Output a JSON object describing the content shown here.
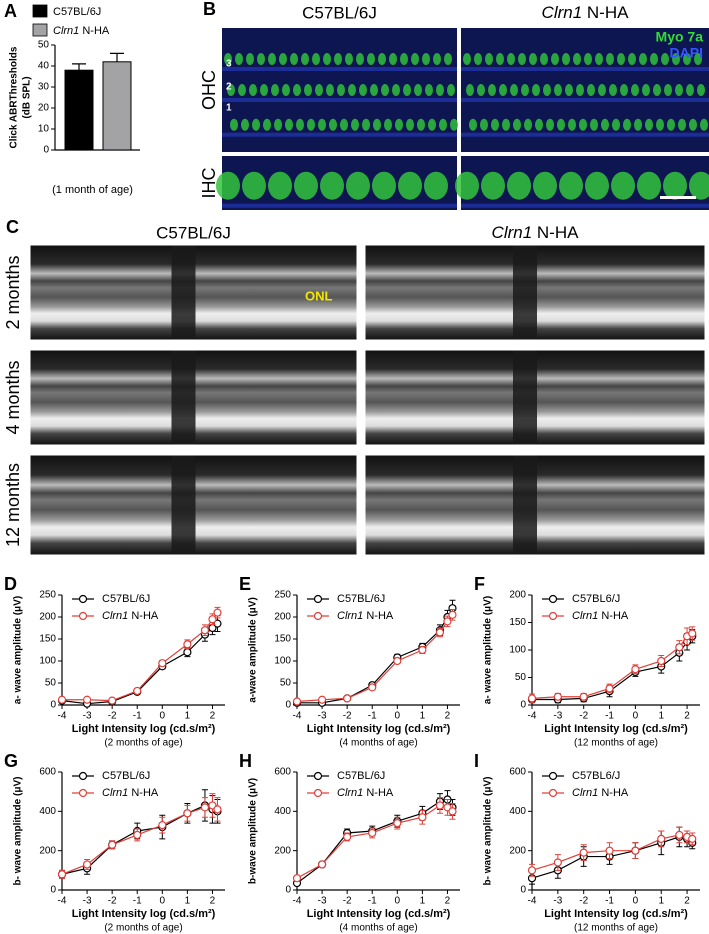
{
  "chart_data": [
    {
      "panel": "A",
      "type": "bar",
      "ylabel": [
        "Click ABRThresholds",
        "(dB SPL)"
      ],
      "xlabel": "(1 month of age)",
      "categories": [
        null
      ],
      "ylim": [
        0,
        50
      ],
      "yticks": [
        0,
        10,
        20,
        30,
        40,
        50
      ],
      "series": [
        {
          "name": "C57BL/6J",
          "color": "#000000",
          "values": [
            38
          ],
          "errors": [
            3
          ]
        },
        {
          "name": "Clrn1 N-HA",
          "color": "#a3a3a6",
          "values": [
            42
          ],
          "errors": [
            4
          ]
        }
      ]
    },
    {
      "panel": "D",
      "type": "line",
      "ylabel": "a- wave amplitude (μV)",
      "xlabel": "Light Intensity log (cd.s/m²)",
      "subtitle": "(2 months of age)",
      "x": [
        -4,
        -3,
        -2,
        -1,
        0,
        1,
        1.7,
        2,
        2.2
      ],
      "xlim": [
        -4,
        2.5
      ],
      "xticks": [
        -4,
        -3,
        -2,
        -1,
        0,
        1,
        2
      ],
      "ylim": [
        0,
        250
      ],
      "yticks": [
        0,
        50,
        100,
        150,
        200,
        250
      ],
      "series": [
        {
          "name": "C57BL/6J",
          "color": "#000000",
          "values": [
            10,
            3,
            8,
            30,
            88,
            120,
            160,
            175,
            185
          ],
          "errors": [
            3,
            3,
            3,
            5,
            6,
            10,
            15,
            15,
            18
          ]
        },
        {
          "name": "Clrn1 N-HA",
          "color": "#e0403a",
          "values": [
            12,
            12,
            10,
            32,
            95,
            138,
            170,
            195,
            210
          ],
          "errors": [
            3,
            3,
            3,
            5,
            6,
            10,
            12,
            12,
            12
          ]
        }
      ]
    },
    {
      "panel": "E",
      "type": "line",
      "ylabel": "a-wave amplitude (μV)",
      "xlabel": "Light Intensity log (cd.s/m²)",
      "subtitle": "(4 months of age)",
      "x": [
        -4,
        -3,
        -2,
        -1,
        0,
        1,
        1.7,
        2,
        2.2
      ],
      "xlim": [
        -4,
        2.5
      ],
      "xticks": [
        -4,
        -3,
        -2,
        -1,
        0,
        1,
        2
      ],
      "ylim": [
        0,
        250
      ],
      "yticks": [
        0,
        50,
        100,
        150,
        200,
        250
      ],
      "series": [
        {
          "name": "C57BL/6J",
          "color": "#000000",
          "values": [
            5,
            5,
            15,
            45,
            108,
            132,
            170,
            200,
            220
          ],
          "errors": [
            3,
            3,
            3,
            6,
            7,
            8,
            12,
            15,
            18
          ]
        },
        {
          "name": "Clrn1 N-HA",
          "color": "#e0403a",
          "values": [
            8,
            12,
            15,
            40,
            100,
            125,
            165,
            190,
            205
          ],
          "errors": [
            3,
            3,
            3,
            5,
            6,
            8,
            10,
            12,
            12
          ]
        }
      ]
    },
    {
      "panel": "F",
      "type": "line",
      "ylabel": "a- wave amplitude (μV)",
      "xlabel": "Light Intensity log (cd.s/m²)",
      "subtitle": "(12 months of age)",
      "x": [
        -4,
        -3,
        -2,
        -1,
        0,
        1,
        1.7,
        2,
        2.2
      ],
      "xlim": [
        -4,
        2.5
      ],
      "xticks": [
        -4,
        -3,
        -2,
        -1,
        0,
        1,
        2
      ],
      "ylim": [
        0,
        200
      ],
      "yticks": [
        0,
        50,
        100,
        150,
        200
      ],
      "series": [
        {
          "name": "C57BL6/J",
          "color": "#000000",
          "values": [
            10,
            10,
            12,
            25,
            60,
            70,
            95,
            115,
            125
          ],
          "errors": [
            10,
            6,
            6,
            10,
            8,
            12,
            15,
            15,
            12
          ]
        },
        {
          "name": "Clrn1 N-HA",
          "color": "#e0403a",
          "values": [
            12,
            15,
            15,
            30,
            65,
            80,
            105,
            125,
            130
          ],
          "errors": [
            8,
            6,
            6,
            8,
            8,
            10,
            12,
            15,
            12
          ]
        }
      ]
    },
    {
      "panel": "G",
      "type": "line",
      "ylabel": "b- wave amplitude (μV)",
      "xlabel": "Light Intensity log (cd.s/m²)",
      "subtitle": "(2 months of age)",
      "x": [
        -4,
        -3,
        -2,
        -1,
        0,
        1,
        1.7,
        2,
        2.2
      ],
      "xlim": [
        -4,
        2.5
      ],
      "xticks": [
        -4,
        -3,
        -2,
        -1,
        0,
        1,
        2
      ],
      "ylim": [
        0,
        600
      ],
      "yticks": [
        0,
        200,
        400,
        600
      ],
      "series": [
        {
          "name": "C57BL/6J",
          "color": "#000000",
          "values": [
            80,
            110,
            230,
            300,
            320,
            390,
            430,
            410,
            400
          ],
          "errors": [
            20,
            30,
            20,
            40,
            60,
            50,
            80,
            70,
            60
          ]
        },
        {
          "name": "Clrn1 N-HA",
          "color": "#e0403a",
          "values": [
            80,
            130,
            230,
            280,
            330,
            390,
            420,
            430,
            410
          ],
          "errors": [
            20,
            25,
            20,
            30,
            40,
            40,
            50,
            60,
            60
          ]
        }
      ]
    },
    {
      "panel": "H",
      "type": "line",
      "ylabel": "b-wave amplitude (μV)",
      "xlabel": "Light Intensity log (cd.s/m²)",
      "subtitle": "(4 months of age)",
      "x": [
        -4,
        -3,
        -2,
        -1,
        0,
        1,
        1.7,
        2,
        2.2
      ],
      "xlim": [
        -4,
        2.5
      ],
      "xticks": [
        -4,
        -3,
        -2,
        -1,
        0,
        1,
        2
      ],
      "ylim": [
        0,
        600
      ],
      "yticks": [
        0,
        200,
        400,
        600
      ],
      "series": [
        {
          "name": "C57BL/6J",
          "color": "#000000",
          "values": [
            35,
            130,
            290,
            300,
            350,
            390,
            450,
            460,
            420
          ],
          "errors": [
            10,
            10,
            20,
            25,
            30,
            35,
            40,
            45,
            40
          ]
        },
        {
          "name": "Clrn1 N-HA",
          "color": "#e0403a",
          "values": [
            60,
            130,
            270,
            290,
            340,
            370,
            430,
            420,
            400
          ],
          "errors": [
            10,
            10,
            20,
            25,
            30,
            35,
            40,
            40,
            40
          ]
        }
      ]
    },
    {
      "panel": "I",
      "type": "line",
      "ylabel": "b- wave amplitude (μV)",
      "xlabel": "Light Intensity log (cd.s/m²)",
      "subtitle": "(12 months of age)",
      "x": [
        -4,
        -3,
        -2,
        -1,
        0,
        1,
        1.7,
        2,
        2.2
      ],
      "xlim": [
        -4,
        2.5
      ],
      "xticks": [
        -4,
        -3,
        -2,
        -1,
        0,
        1,
        2
      ],
      "ylim": [
        0,
        600
      ],
      "yticks": [
        0,
        200,
        400,
        600
      ],
      "series": [
        {
          "name": "C57BL6/J",
          "color": "#000000",
          "values": [
            60,
            100,
            170,
            170,
            200,
            240,
            270,
            260,
            240
          ],
          "errors": [
            30,
            40,
            50,
            40,
            40,
            60,
            50,
            40,
            30
          ]
        },
        {
          "name": "Clrn1 N-HA",
          "color": "#e0403a",
          "values": [
            100,
            140,
            190,
            200,
            200,
            260,
            280,
            270,
            260
          ],
          "errors": [
            30,
            40,
            40,
            40,
            40,
            40,
            40,
            30,
            30
          ]
        }
      ]
    }
  ],
  "image_panels": {
    "B": {
      "label": "B",
      "columns": [
        "C57BL/6J",
        "Clrn1 N-HA"
      ],
      "rows": [
        "OHC",
        "IHC"
      ],
      "stains": [
        "Myo 7a",
        "DAPI"
      ],
      "row_markers": [
        "3",
        "2",
        "1"
      ]
    },
    "C": {
      "label": "C",
      "columns": [
        "C57BL/6J",
        "Clrn1 N-HA"
      ],
      "rows": [
        "2 months",
        "4 months",
        "12 months"
      ],
      "annotation": "ONL"
    }
  }
}
